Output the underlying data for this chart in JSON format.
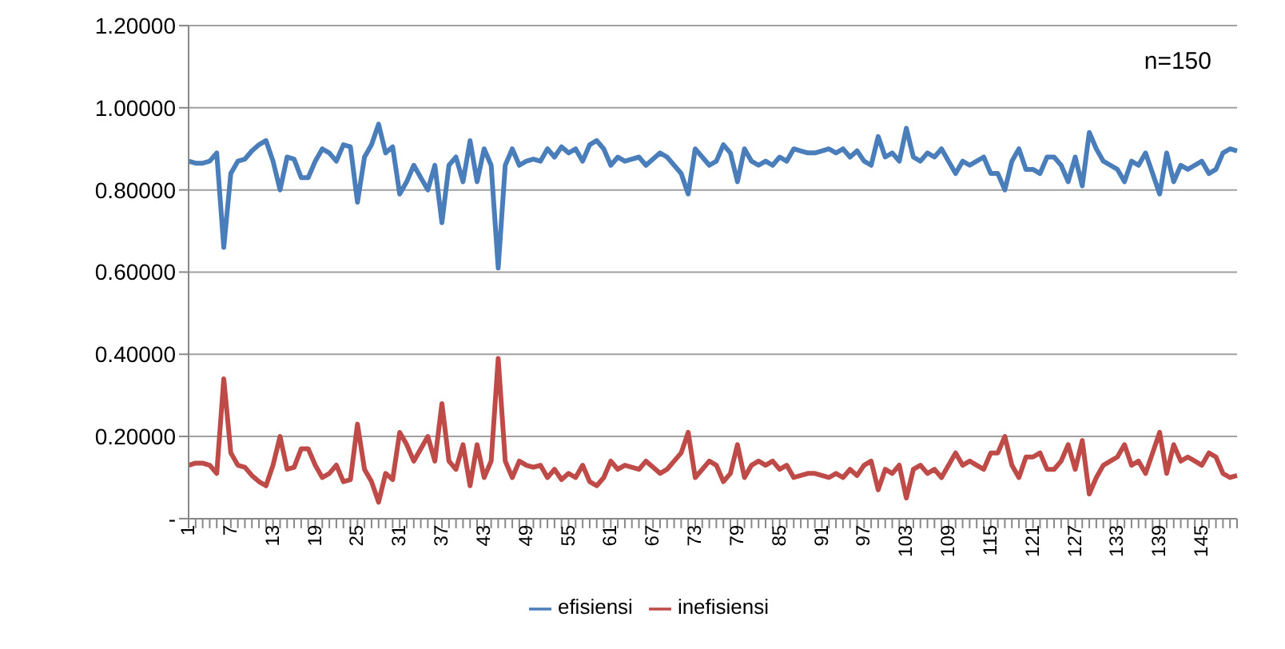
{
  "chart_data": {
    "type": "line",
    "categories": [
      "1",
      null,
      null,
      null,
      null,
      null,
      "7",
      null,
      null,
      null,
      null,
      null,
      "13",
      null,
      null,
      null,
      null,
      null,
      "19",
      null,
      null,
      null,
      null,
      null,
      "25",
      null,
      null,
      null,
      null,
      null,
      "31",
      null,
      null,
      null,
      null,
      null,
      "37",
      null,
      null,
      null,
      null,
      null,
      "43",
      null,
      null,
      null,
      null,
      null,
      "49",
      null,
      null,
      null,
      null,
      null,
      "55",
      null,
      null,
      null,
      null,
      null,
      "61",
      null,
      null,
      null,
      null,
      null,
      "67",
      null,
      null,
      null,
      null,
      null,
      "73",
      null,
      null,
      null,
      null,
      null,
      "79",
      null,
      null,
      null,
      null,
      null,
      "85",
      null,
      null,
      null,
      null,
      null,
      "91",
      null,
      null,
      null,
      null,
      null,
      "97",
      null,
      null,
      null,
      null,
      null,
      "103",
      null,
      null,
      null,
      null,
      null,
      "109",
      null,
      null,
      null,
      null,
      null,
      "115",
      null,
      null,
      null,
      null,
      null,
      "121",
      null,
      null,
      null,
      null,
      null,
      "127",
      null,
      null,
      null,
      null,
      null,
      "133",
      null,
      null,
      null,
      null,
      null,
      "139",
      null,
      null,
      null,
      null,
      null,
      "145",
      null,
      null,
      null,
      null,
      null
    ],
    "series": [
      {
        "name": "efisiensi",
        "color": "#4a7ebb",
        "values": [
          0.87,
          0.865,
          0.865,
          0.87,
          0.89,
          0.66,
          0.84,
          0.87,
          0.875,
          0.895,
          0.91,
          0.92,
          0.87,
          0.8,
          0.88,
          0.875,
          0.83,
          0.83,
          0.87,
          0.9,
          0.89,
          0.87,
          0.91,
          0.905,
          0.77,
          0.88,
          0.91,
          0.96,
          0.89,
          0.905,
          0.79,
          0.82,
          0.86,
          0.83,
          0.8,
          0.86,
          0.72,
          0.86,
          0.88,
          0.82,
          0.92,
          0.82,
          0.9,
          0.86,
          0.61,
          0.86,
          0.9,
          0.86,
          0.87,
          0.875,
          0.87,
          0.9,
          0.88,
          0.905,
          0.89,
          0.9,
          0.87,
          0.91,
          0.92,
          0.9,
          0.86,
          0.88,
          0.87,
          0.875,
          0.88,
          0.86,
          0.875,
          0.89,
          0.88,
          0.86,
          0.84,
          0.79,
          0.9,
          0.88,
          0.86,
          0.87,
          0.91,
          0.89,
          0.82,
          0.9,
          0.87,
          0.86,
          0.87,
          0.86,
          0.88,
          0.87,
          0.9,
          0.895,
          0.89,
          0.89,
          0.895,
          0.9,
          0.89,
          0.9,
          0.88,
          0.895,
          0.87,
          0.86,
          0.93,
          0.88,
          0.89,
          0.87,
          0.95,
          0.88,
          0.87,
          0.89,
          0.88,
          0.9,
          0.87,
          0.84,
          0.87,
          0.86,
          0.87,
          0.88,
          0.84,
          0.84,
          0.8,
          0.87,
          0.9,
          0.85,
          0.85,
          0.84,
          0.88,
          0.88,
          0.86,
          0.82,
          0.88,
          0.81,
          0.94,
          0.9,
          0.87,
          0.86,
          0.85,
          0.82,
          0.87,
          0.86,
          0.89,
          0.84,
          0.79,
          0.89,
          0.82,
          0.86,
          0.85,
          0.86,
          0.87,
          0.84,
          0.85,
          0.89,
          0.9,
          0.895
        ]
      },
      {
        "name": "inefisiensi",
        "color": "#be4b48",
        "values": [
          0.13,
          0.135,
          0.135,
          0.13,
          0.11,
          0.34,
          0.16,
          0.13,
          0.125,
          0.105,
          0.09,
          0.08,
          0.13,
          0.2,
          0.12,
          0.125,
          0.17,
          0.17,
          0.13,
          0.1,
          0.11,
          0.13,
          0.09,
          0.095,
          0.23,
          0.12,
          0.09,
          0.04,
          0.11,
          0.095,
          0.21,
          0.18,
          0.14,
          0.17,
          0.2,
          0.14,
          0.28,
          0.14,
          0.12,
          0.18,
          0.08,
          0.18,
          0.1,
          0.14,
          0.39,
          0.14,
          0.1,
          0.14,
          0.13,
          0.125,
          0.13,
          0.1,
          0.12,
          0.095,
          0.11,
          0.1,
          0.13,
          0.09,
          0.08,
          0.1,
          0.14,
          0.12,
          0.13,
          0.125,
          0.12,
          0.14,
          0.125,
          0.11,
          0.12,
          0.14,
          0.16,
          0.21,
          0.1,
          0.12,
          0.14,
          0.13,
          0.09,
          0.11,
          0.18,
          0.1,
          0.13,
          0.14,
          0.13,
          0.14,
          0.12,
          0.13,
          0.1,
          0.105,
          0.11,
          0.11,
          0.105,
          0.1,
          0.11,
          0.1,
          0.12,
          0.105,
          0.13,
          0.14,
          0.07,
          0.12,
          0.11,
          0.13,
          0.05,
          0.12,
          0.13,
          0.11,
          0.12,
          0.1,
          0.13,
          0.16,
          0.13,
          0.14,
          0.13,
          0.12,
          0.16,
          0.16,
          0.2,
          0.13,
          0.1,
          0.15,
          0.15,
          0.16,
          0.12,
          0.12,
          0.14,
          0.18,
          0.12,
          0.19,
          0.06,
          0.1,
          0.13,
          0.14,
          0.15,
          0.18,
          0.13,
          0.14,
          0.11,
          0.16,
          0.21,
          0.11,
          0.18,
          0.14,
          0.15,
          0.14,
          0.13,
          0.16,
          0.15,
          0.11,
          0.1,
          0.105
        ]
      }
    ],
    "ylim": [
      0,
      1.2
    ],
    "yticks": [
      {
        "value": 0,
        "label": "-"
      },
      {
        "value": 0.2,
        "label": "0.20000"
      },
      {
        "value": 0.4,
        "label": "0.40000"
      },
      {
        "value": 0.6,
        "label": "0.60000"
      },
      {
        "value": 0.8,
        "label": "0.80000"
      },
      {
        "value": 1,
        "label": "1.00000"
      },
      {
        "value": 1.2,
        "label": "1.20000"
      }
    ],
    "grid": "y",
    "legend": "bottom",
    "marker": "none",
    "line_style": "solid",
    "annotations": [
      "n=150"
    ]
  }
}
